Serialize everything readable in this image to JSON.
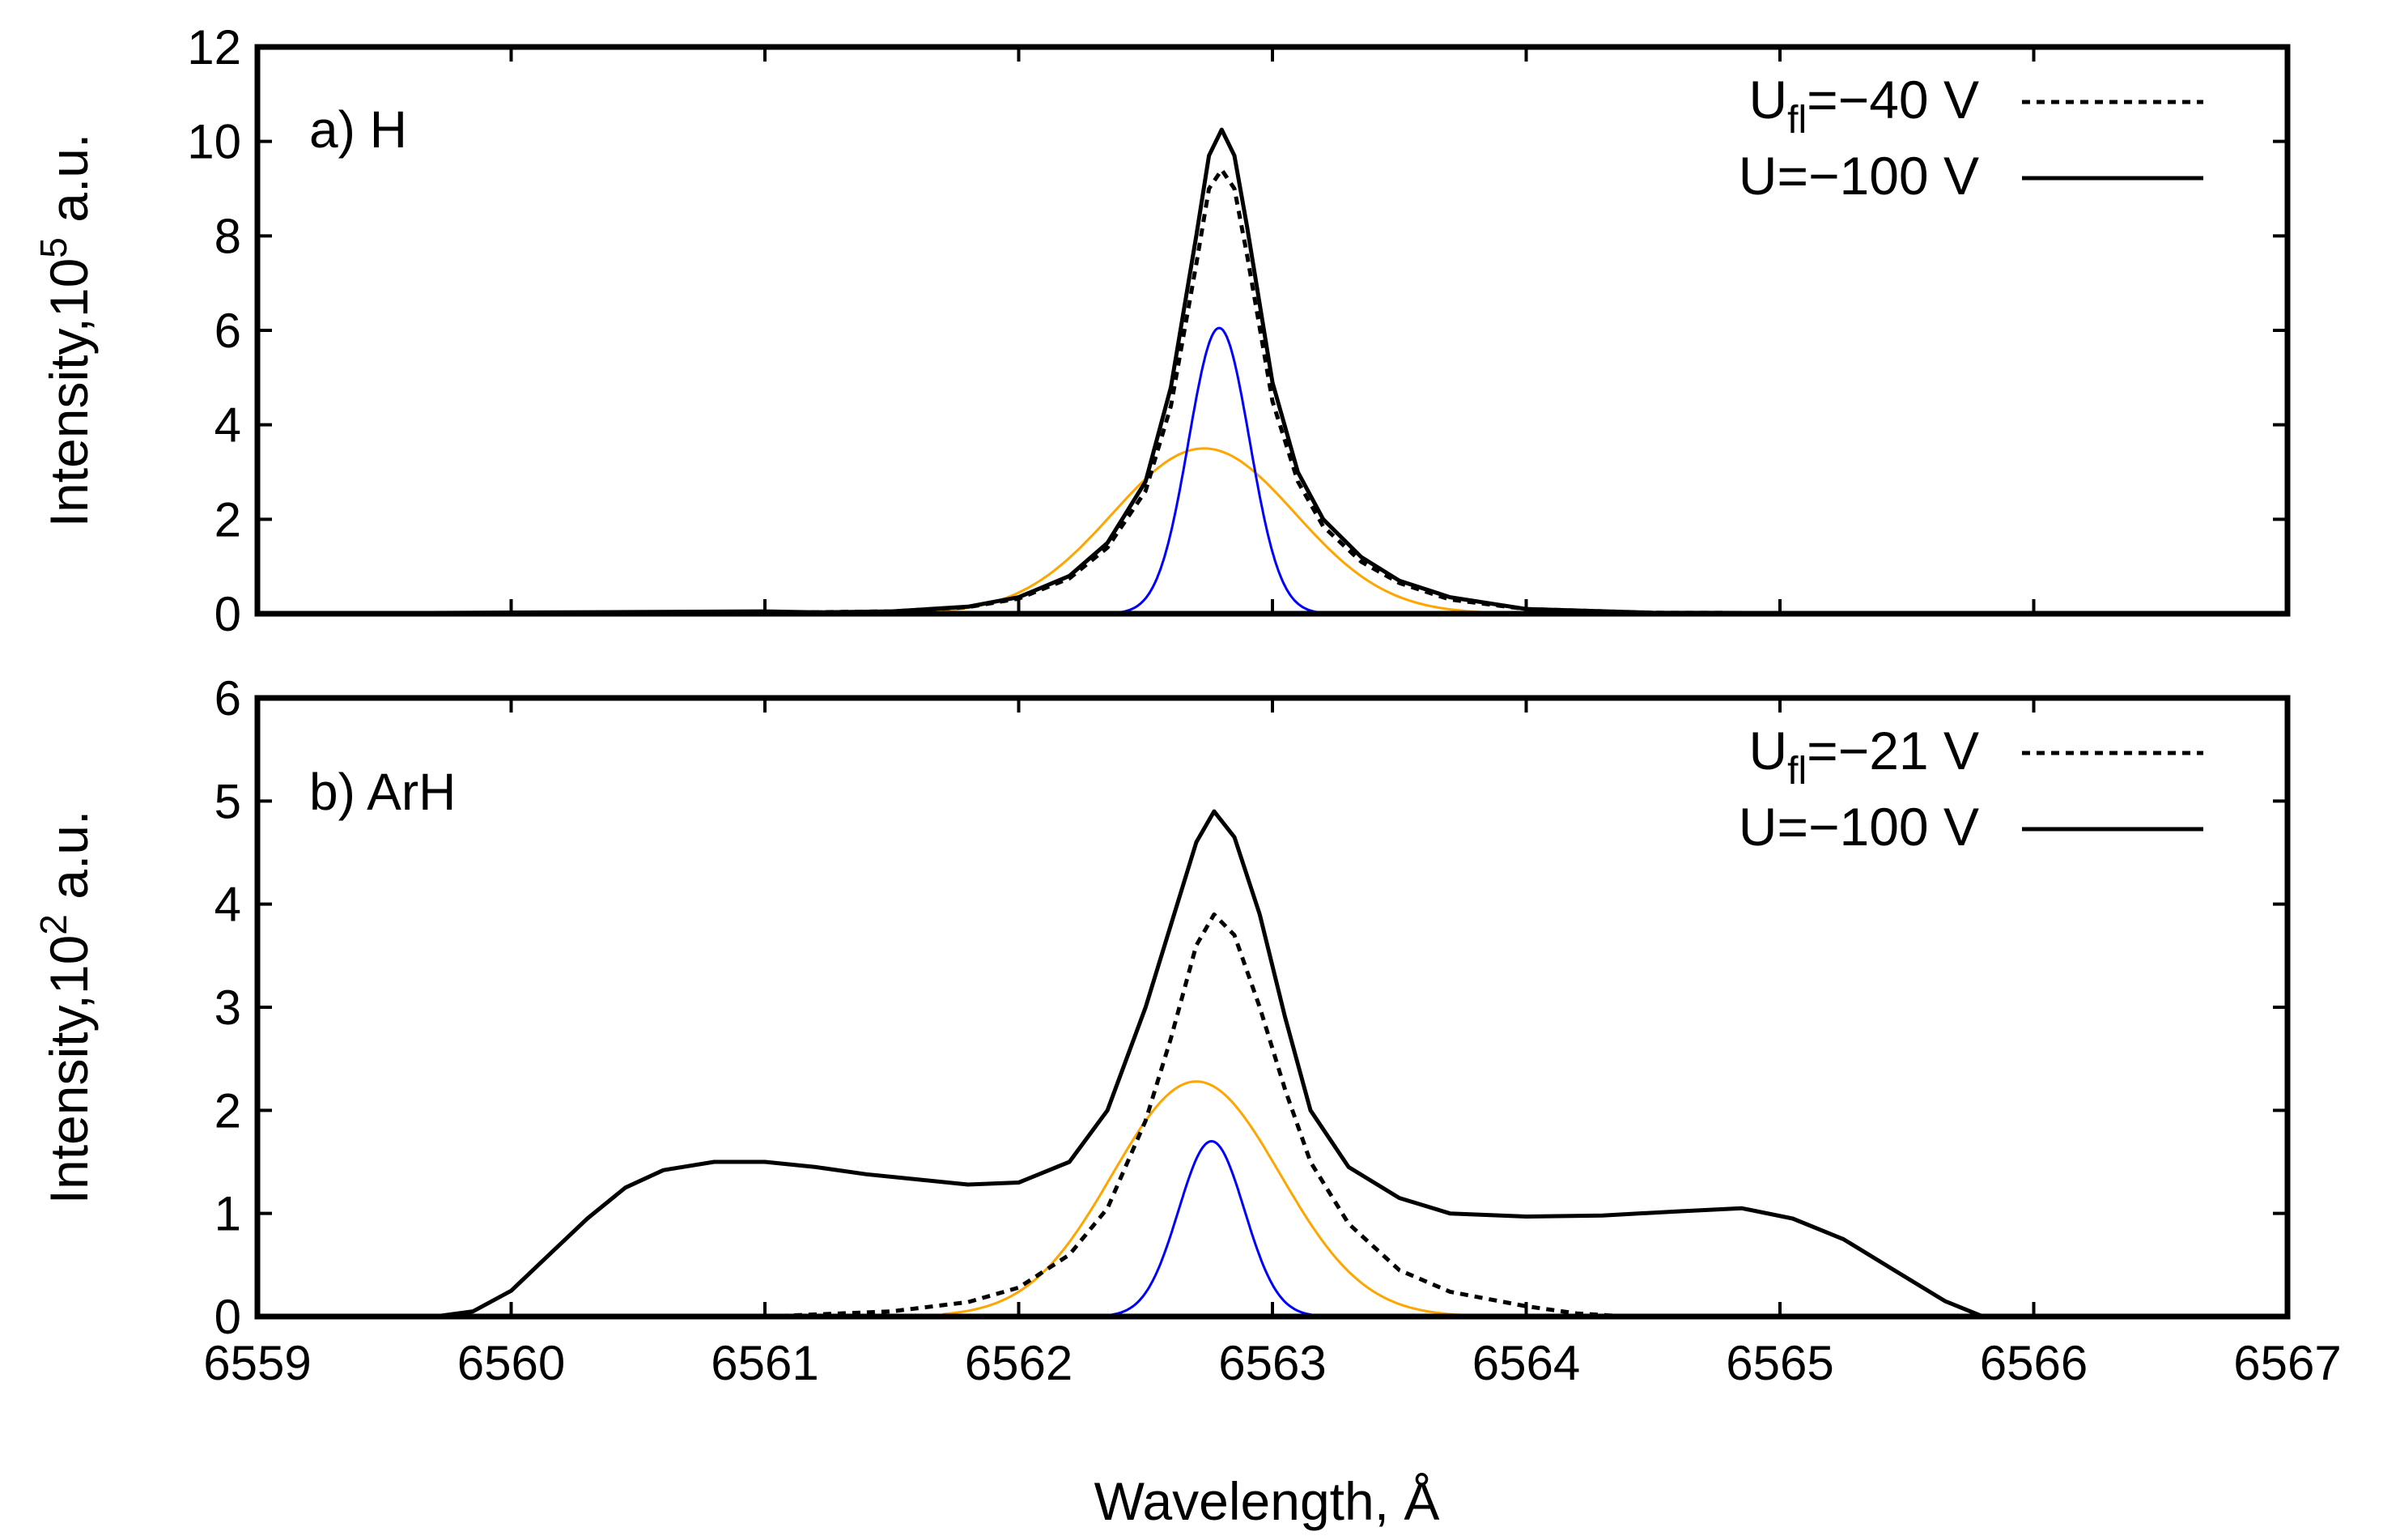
{
  "figure": {
    "xlabel": "Wavelength, Å"
  },
  "chart_data": [
    {
      "type": "line",
      "panel_label": "a) H",
      "ylabel_prefix": "Intensity,10",
      "ylabel_exponent": "5",
      "ylabel_suffix": " a.u.",
      "xlim": [
        6559,
        6567
      ],
      "ylim": [
        0,
        12
      ],
      "xticks": [
        "6559",
        "6560",
        "6561",
        "6562",
        "6563",
        "6564",
        "6565",
        "6566",
        "6567"
      ],
      "yticks": [
        "0",
        "2",
        "4",
        "6",
        "8",
        "10",
        "12"
      ],
      "legend_position": "top-right",
      "legend": [
        {
          "base": "U",
          "sub": "fl",
          "rest": "=−40 V",
          "style": "dotted"
        },
        {
          "base": "U",
          "sub": "",
          "rest": "=−100 V",
          "style": "solid"
        }
      ],
      "series": [
        {
          "name": "U=−100 V",
          "style": "solid",
          "color": "#000000",
          "x": [
            6559.0,
            6561.0,
            6561.2,
            6561.5,
            6561.8,
            6562.0,
            6562.2,
            6562.35,
            6562.5,
            6562.6,
            6562.7,
            6562.75,
            6562.8,
            6562.85,
            6562.9,
            6563.0,
            6563.1,
            6563.2,
            6563.35,
            6563.5,
            6563.7,
            6564.0,
            6564.5,
            6567.0
          ],
          "y": [
            0.0,
            0.05,
            0.03,
            0.05,
            0.15,
            0.35,
            0.8,
            1.5,
            2.8,
            4.8,
            8.0,
            9.7,
            10.25,
            9.7,
            8.2,
            4.9,
            3.0,
            2.0,
            1.2,
            0.7,
            0.35,
            0.1,
            0.02,
            0.0
          ]
        },
        {
          "name": "U_fl=−40 V",
          "style": "dotted",
          "color": "#000000",
          "x": [
            6559.0,
            6561.0,
            6561.5,
            6561.8,
            6562.0,
            6562.2,
            6562.35,
            6562.5,
            6562.6,
            6562.7,
            6562.75,
            6562.8,
            6562.85,
            6562.9,
            6563.0,
            6563.1,
            6563.2,
            6563.35,
            6563.5,
            6563.7,
            6564.0,
            6564.5,
            6567.0
          ],
          "y": [
            0.0,
            0.02,
            0.05,
            0.14,
            0.32,
            0.75,
            1.4,
            2.6,
            4.4,
            7.4,
            9.0,
            9.4,
            9.0,
            7.6,
            4.5,
            2.8,
            1.85,
            1.1,
            0.65,
            0.3,
            0.1,
            0.02,
            0.0
          ]
        },
        {
          "name": "broad component",
          "style": "thin",
          "color": "#ffa500",
          "kind": "gaussian",
          "amplitude": 3.5,
          "center": 6562.73,
          "sigma": 0.36,
          "range": [
            6561.5,
            6564.0
          ]
        },
        {
          "name": "narrow component",
          "style": "thin",
          "color": "#0000ff",
          "kind": "gaussian",
          "amplitude": 6.05,
          "center": 6562.79,
          "sigma": 0.12,
          "range": [
            6562.3,
            6563.3
          ]
        }
      ]
    },
    {
      "type": "line",
      "panel_label": "b) ArH",
      "ylabel_prefix": "Intensity,10",
      "ylabel_exponent": "2",
      "ylabel_suffix": " a.u.",
      "xlim": [
        6559,
        6567
      ],
      "ylim": [
        0,
        6
      ],
      "xticks": [
        "6559",
        "6560",
        "6561",
        "6562",
        "6563",
        "6564",
        "6565",
        "6566",
        "6567"
      ],
      "yticks": [
        "0",
        "1",
        "2",
        "3",
        "4",
        "5",
        "6"
      ],
      "legend_position": "top-right",
      "legend": [
        {
          "base": "U",
          "sub": "fl",
          "rest": "=−21 V",
          "style": "dotted"
        },
        {
          "base": "U",
          "sub": "",
          "rest": "=−100 V",
          "style": "solid"
        }
      ],
      "series": [
        {
          "name": "U=−100 V",
          "style": "solid",
          "color": "#000000",
          "x": [
            6559.7,
            6559.85,
            6560.0,
            6560.15,
            6560.3,
            6560.45,
            6560.6,
            6560.8,
            6561.0,
            6561.2,
            6561.4,
            6561.6,
            6561.8,
            6562.0,
            6562.2,
            6562.35,
            6562.5,
            6562.6,
            6562.7,
            6562.77,
            6562.85,
            6562.95,
            6563.05,
            6563.15,
            6563.3,
            6563.5,
            6563.7,
            6564.0,
            6564.3,
            6564.6,
            6564.85,
            6565.05,
            6565.25,
            6565.45,
            6565.65,
            6565.8
          ],
          "y": [
            0.0,
            0.05,
            0.25,
            0.6,
            0.95,
            1.25,
            1.42,
            1.5,
            1.5,
            1.45,
            1.38,
            1.33,
            1.28,
            1.3,
            1.5,
            2.0,
            3.0,
            3.8,
            4.6,
            4.9,
            4.65,
            3.9,
            2.9,
            2.0,
            1.45,
            1.15,
            1.0,
            0.97,
            0.98,
            1.02,
            1.05,
            0.95,
            0.75,
            0.45,
            0.15,
            0.0
          ]
        },
        {
          "name": "U_fl=−21 V",
          "style": "dotted",
          "color": "#000000",
          "x": [
            6561.0,
            6561.5,
            6561.8,
            6562.0,
            6562.2,
            6562.35,
            6562.5,
            6562.6,
            6562.7,
            6562.77,
            6562.85,
            6562.95,
            6563.05,
            6563.15,
            6563.3,
            6563.5,
            6563.7,
            6564.0,
            6564.2,
            6564.4
          ],
          "y": [
            0.0,
            0.05,
            0.14,
            0.28,
            0.6,
            1.05,
            1.9,
            2.7,
            3.6,
            3.9,
            3.7,
            3.0,
            2.2,
            1.5,
            0.9,
            0.45,
            0.24,
            0.1,
            0.03,
            0.0
          ]
        },
        {
          "name": "broad component",
          "style": "thin",
          "color": "#ffa500",
          "kind": "gaussian",
          "amplitude": 2.28,
          "center": 6562.7,
          "sigma": 0.33,
          "range": [
            6561.7,
            6563.8
          ]
        },
        {
          "name": "narrow component",
          "style": "thin",
          "color": "#0000ff",
          "kind": "gaussian",
          "amplitude": 1.7,
          "center": 6562.76,
          "sigma": 0.13,
          "range": [
            6562.3,
            6563.25
          ]
        }
      ]
    }
  ]
}
